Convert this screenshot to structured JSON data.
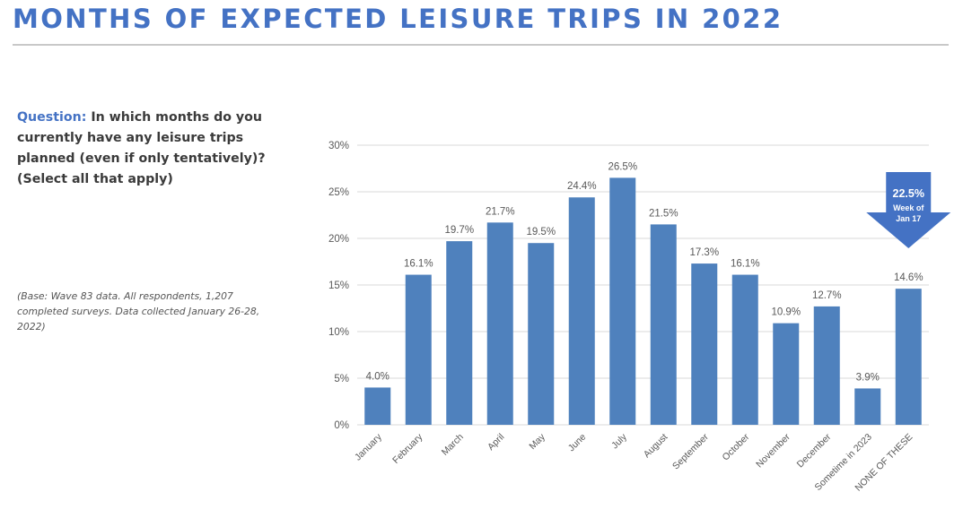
{
  "header": {
    "title": "MONTHS OF EXPECTED LEISURE TRIPS IN 2022"
  },
  "question": {
    "label": "Question:",
    "text": " In which months do you currently have any leisure trips planned (even if only tentatively)? (Select all that apply)"
  },
  "base_note": "(Base: Wave 83 data. All respondents, 1,207 completed surveys. Data collected January 26-28, 2022)",
  "callout": {
    "value": "22.5%",
    "line1": "Week of",
    "line2": "Jan 17"
  },
  "colors": {
    "title": "#4472c4",
    "bar": "#4f81bd",
    "arrow": "#4472c4",
    "axis_text": "#595959",
    "grid": "#d9d9d9"
  },
  "chart_data": {
    "type": "bar",
    "categories": [
      "January",
      "February",
      "March",
      "April",
      "May",
      "June",
      "July",
      "August",
      "September",
      "October",
      "November",
      "December",
      "Sometime in 2023",
      "NONE OF THESE"
    ],
    "values": [
      4.0,
      16.1,
      19.7,
      21.7,
      19.5,
      24.4,
      26.5,
      21.5,
      17.3,
      16.1,
      10.9,
      12.7,
      3.9,
      14.6
    ],
    "data_labels": [
      "4.0%",
      "16.1%",
      "19.7%",
      "21.7%",
      "19.5%",
      "24.4%",
      "26.5%",
      "21.5%",
      "17.3%",
      "16.1%",
      "10.9%",
      "12.7%",
      "3.9%",
      "14.6%"
    ],
    "y_ticks": [
      "0%",
      "5%",
      "10%",
      "15%",
      "20%",
      "25%",
      "30%"
    ],
    "ylim": [
      0,
      30
    ],
    "grid": true,
    "legend": false,
    "title": "",
    "xlabel": "",
    "ylabel": ""
  }
}
